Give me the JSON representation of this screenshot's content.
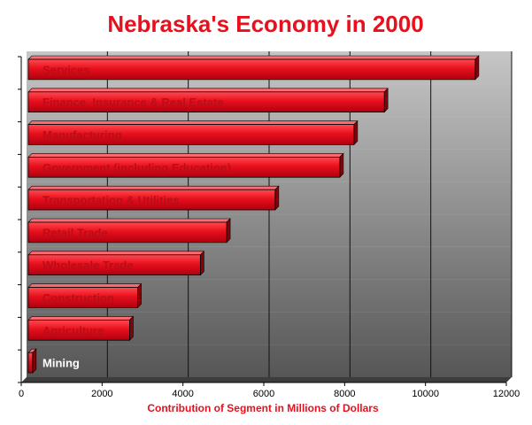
{
  "chart_data": {
    "type": "bar",
    "orientation": "horizontal",
    "title": "Nebraska's Economy in 2000",
    "xlabel": "Contribution of Segment in Millions of Dollars",
    "ylabel": "",
    "xlim": [
      0,
      12000
    ],
    "xticks": [
      "0",
      "2000",
      "4000",
      "6000",
      "8000",
      "10000",
      "12000"
    ],
    "grid": true,
    "categories": [
      "Services",
      "Finance, Insurance & Real Estate",
      "Manufacturing",
      "Government (including Education)",
      "Transportation & Utilities",
      "Retail Trade",
      "Wholesale Trade",
      "Construction",
      "Agriculture",
      "Mining"
    ],
    "values": [
      11100,
      8850,
      8100,
      7750,
      6150,
      4950,
      4300,
      2750,
      2550,
      150
    ],
    "colors": {
      "bar": "#e8101c",
      "bar_dark": "#8a0008",
      "label_inside": "#b80e18",
      "label_outside": "#ffffff",
      "title": "#e8101c"
    }
  }
}
